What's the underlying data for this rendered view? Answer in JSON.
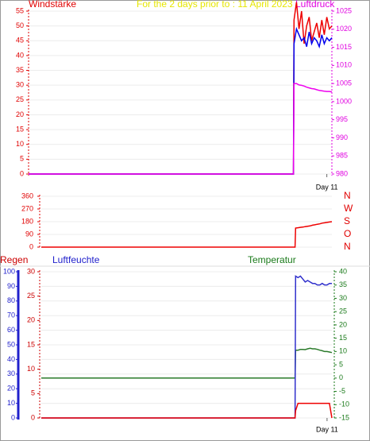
{
  "chart_data": [
    {
      "type": "line",
      "title": "For the 2 days prior to : 11 April 2023",
      "ylabel": "Windstärke",
      "y2label": "Luftdruck",
      "grid": true,
      "x": [
        0,
        52.4,
        52.5,
        53,
        53.5,
        54,
        54.5,
        55,
        55.5,
        56,
        56.5,
        57,
        57.5,
        58,
        58.5,
        59,
        59.5,
        60
      ],
      "xlim": [
        0,
        60
      ],
      "xticks": [
        {
          "value": 59,
          "label": "Day 11"
        }
      ],
      "ylim": [
        0,
        55
      ],
      "yticks": [
        0,
        5,
        10,
        15,
        20,
        25,
        30,
        35,
        40,
        45,
        50,
        55
      ],
      "y2lim": [
        980,
        1025
      ],
      "y2ticks": [
        980,
        985,
        990,
        995,
        1000,
        1005,
        1010,
        1015,
        1020,
        1025
      ],
      "series": [
        {
          "color": "#ee0000",
          "values": [
            0,
            0,
            52,
            58,
            49,
            55,
            44,
            50,
            53,
            45,
            48,
            51,
            46,
            52,
            47,
            53,
            49,
            50
          ]
        },
        {
          "color": "#0000ee",
          "values": [
            0,
            0,
            44,
            49,
            47,
            45,
            46,
            43,
            48,
            44,
            46,
            45,
            43,
            47,
            44,
            46,
            45,
            46
          ]
        },
        {
          "color": "#ee00ee",
          "axis": "y2",
          "values": [
            980,
            980,
            1005,
            1005,
            1004.6,
            1004.5,
            1004.3,
            1004,
            1003.8,
            1003.6,
            1003.5,
            1003.3,
            1003.1,
            1003,
            1002.9,
            1002.8,
            1002.8,
            1002.7
          ]
        }
      ]
    },
    {
      "type": "line",
      "grid": true,
      "x": [
        0,
        52.4,
        52.5,
        53,
        53.5,
        54,
        54.5,
        55,
        55.5,
        56,
        56.5,
        57,
        57.5,
        58,
        58.5,
        59,
        59.5,
        60
      ],
      "xlim": [
        0,
        60
      ],
      "ylim": [
        0,
        360
      ],
      "yticks": [
        0,
        90,
        180,
        270,
        360
      ],
      "y2lim": [
        0,
        360
      ],
      "y2ticks": [
        {
          "value": 360,
          "label": "N"
        },
        {
          "value": 270,
          "label": "W"
        },
        {
          "value": 180,
          "label": "S"
        },
        {
          "value": 90,
          "label": "O"
        },
        {
          "value": 0,
          "label": "N"
        }
      ],
      "series": [
        {
          "color": "#ee0000",
          "values": [
            0,
            0,
            135,
            137,
            140,
            142,
            145,
            148,
            150,
            155,
            158,
            162,
            165,
            170,
            172,
            175,
            178,
            180
          ]
        }
      ]
    },
    {
      "type": "line",
      "ylabel": "Luftfeuchte",
      "y2label": "Temperatur",
      "y3label": "Regen",
      "grid": true,
      "x": [
        0,
        52.4,
        52.5,
        53,
        53.5,
        54,
        54.5,
        55,
        55.5,
        56,
        56.5,
        57,
        57.5,
        58,
        58.5,
        59,
        59.5,
        60
      ],
      "xlim": [
        0,
        60
      ],
      "xticks": [
        {
          "value": 59,
          "label": "Day 11"
        }
      ],
      "ylim": [
        0,
        100
      ],
      "yticks": [
        0,
        10,
        20,
        30,
        40,
        50,
        60,
        70,
        80,
        90,
        100
      ],
      "y2lim": [
        -15,
        40
      ],
      "y2ticks": [
        -15,
        -10,
        -5,
        0,
        5,
        10,
        15,
        20,
        25,
        30,
        35,
        40
      ],
      "y3lim": [
        0,
        30
      ],
      "y3ticks": [
        0,
        5,
        10,
        15,
        20,
        25,
        30
      ],
      "series": [
        {
          "color": "#2a7a2a",
          "axis": "y2",
          "values": [
            0,
            0,
            10.5,
            10.5,
            10.8,
            10.8,
            10.7,
            11,
            11.2,
            11,
            11,
            10.8,
            10.5,
            10.3,
            10,
            10,
            9.8,
            9.6
          ]
        },
        {
          "color": "#3030cc",
          "values": [
            0,
            0,
            97,
            96,
            97,
            95,
            93,
            94,
            93,
            92,
            92,
            91,
            91,
            92,
            91,
            91,
            92,
            92
          ]
        },
        {
          "color": "#ee0000",
          "axis": "y3",
          "values": [
            0,
            0,
            1.5,
            3,
            3,
            3,
            3,
            3,
            3,
            3,
            3,
            3,
            3,
            3,
            3,
            3,
            3,
            0
          ]
        }
      ]
    }
  ]
}
